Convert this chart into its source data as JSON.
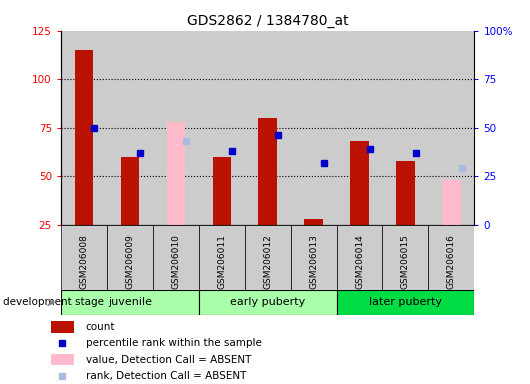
{
  "title": "GDS2862 / 1384780_at",
  "samples": [
    "GSM206008",
    "GSM206009",
    "GSM206010",
    "GSM206011",
    "GSM206012",
    "GSM206013",
    "GSM206014",
    "GSM206015",
    "GSM206016"
  ],
  "count_values": [
    115,
    60,
    null,
    60,
    80,
    28,
    68,
    58,
    null
  ],
  "rank_values": [
    75,
    62,
    null,
    63,
    71,
    57,
    64,
    62,
    null
  ],
  "absent_value": [
    null,
    null,
    78,
    null,
    null,
    null,
    null,
    null,
    48
  ],
  "absent_rank": [
    null,
    null,
    68,
    null,
    null,
    null,
    null,
    null,
    54
  ],
  "stages": [
    {
      "label": "juvenile",
      "start": 0,
      "end": 3,
      "color": "#AAFFAA"
    },
    {
      "label": "early puberty",
      "start": 3,
      "end": 6,
      "color": "#AAFFAA"
    },
    {
      "label": "later puberty",
      "start": 6,
      "end": 9,
      "color": "#00DD44"
    }
  ],
  "ylim_left": [
    25,
    125
  ],
  "ylim_right": [
    0,
    100
  ],
  "left_ticks": [
    25,
    50,
    75,
    100,
    125
  ],
  "right_ticks": [
    0,
    25,
    50,
    75,
    100
  ],
  "right_tick_labels": [
    "0",
    "25",
    "50",
    "75",
    "100%"
  ],
  "bar_color_red": "#BB1100",
  "bar_color_pink": "#FFBBCC",
  "dot_color_blue": "#0000CC",
  "dot_color_lightblue": "#AABBDD",
  "bar_width": 0.4,
  "background_color": "#CCCCCC",
  "development_stage_label": "development stage",
  "legend_items": [
    {
      "color": "#BB1100",
      "type": "rect",
      "label": "count"
    },
    {
      "color": "#0000CC",
      "type": "square",
      "label": "percentile rank within the sample"
    },
    {
      "color": "#FFBBCC",
      "type": "rect",
      "label": "value, Detection Call = ABSENT"
    },
    {
      "color": "#AABBDD",
      "type": "square",
      "label": "rank, Detection Call = ABSENT"
    }
  ]
}
